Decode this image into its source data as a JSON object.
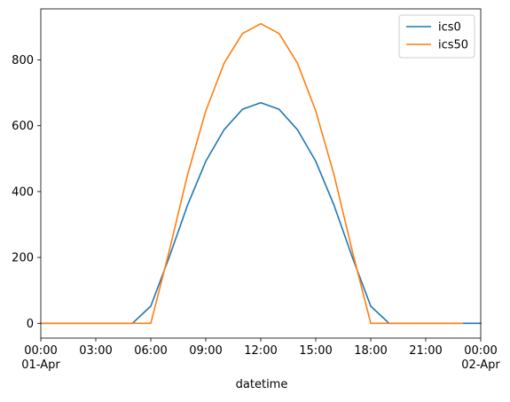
{
  "chart_data": {
    "type": "line",
    "title": "",
    "xlabel": "datetime",
    "ylabel": "",
    "x_ticks": [
      {
        "hour": 0,
        "label": "00:00",
        "sublabel": "01-Apr"
      },
      {
        "hour": 3,
        "label": "03:00",
        "sublabel": ""
      },
      {
        "hour": 6,
        "label": "06:00",
        "sublabel": ""
      },
      {
        "hour": 9,
        "label": "09:00",
        "sublabel": ""
      },
      {
        "hour": 12,
        "label": "12:00",
        "sublabel": ""
      },
      {
        "hour": 15,
        "label": "15:00",
        "sublabel": ""
      },
      {
        "hour": 18,
        "label": "18:00",
        "sublabel": ""
      },
      {
        "hour": 21,
        "label": "21:00",
        "sublabel": ""
      },
      {
        "hour": 24,
        "label": "00:00",
        "sublabel": "02-Apr"
      }
    ],
    "y_ticks": [
      0,
      200,
      400,
      600,
      800
    ],
    "xlim": [
      0,
      24
    ],
    "ylim": [
      -45,
      955
    ],
    "grid": false,
    "legend_position": "upper right",
    "series": [
      {
        "name": "ics0",
        "color": "#1f77b4",
        "x": [
          0,
          1,
          2,
          3,
          4,
          5,
          6,
          7,
          8,
          9,
          10,
          11,
          12,
          13,
          14,
          15,
          16,
          17,
          18,
          19,
          20,
          21,
          22,
          23,
          24
        ],
        "values": [
          0,
          0,
          0,
          0,
          0,
          0,
          52,
          200,
          358,
          492,
          588,
          650,
          670,
          650,
          588,
          492,
          358,
          200,
          52,
          0,
          0,
          0,
          0,
          0,
          0
        ]
      },
      {
        "name": "ics50",
        "color": "#ff7f0e",
        "x": [
          0,
          1,
          2,
          3,
          4,
          5,
          6,
          7,
          8,
          9,
          10,
          11,
          12,
          13,
          14,
          15,
          16,
          17,
          18,
          19,
          20,
          21,
          22,
          23
        ],
        "values": [
          0,
          0,
          0,
          0,
          0,
          0,
          0,
          218,
          450,
          645,
          790,
          880,
          910,
          880,
          790,
          645,
          450,
          218,
          0,
          0,
          0,
          0,
          0,
          0
        ]
      }
    ]
  }
}
